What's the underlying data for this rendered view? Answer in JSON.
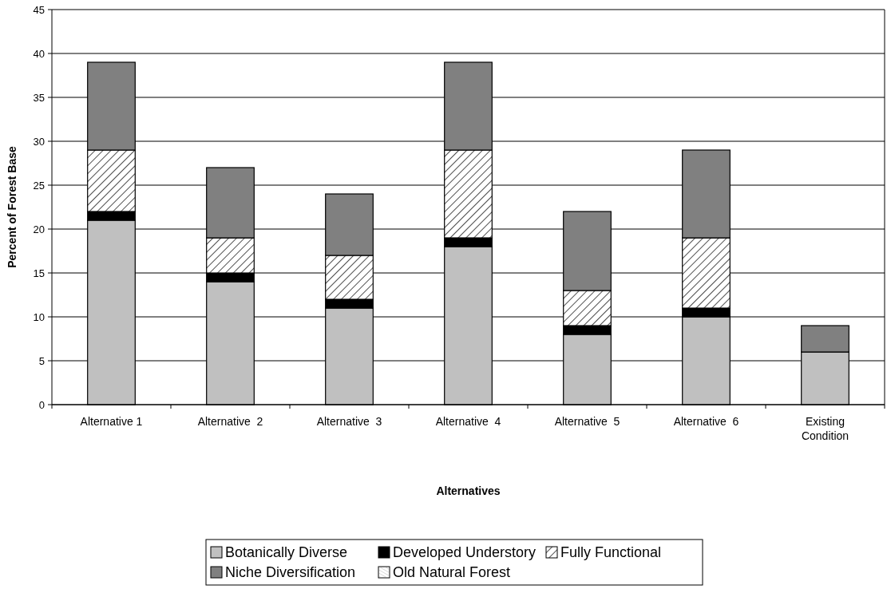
{
  "chart_data": {
    "type": "bar",
    "stacked": true,
    "xlabel": "Alternatives",
    "ylabel": "Percent of Forest Base",
    "categories": [
      "Alternative 1",
      "Alternative  2",
      "Alternative  3",
      "Alternative  4",
      "Alternative  5",
      "Alternative  6",
      "Existing Condition"
    ],
    "series": [
      {
        "name": "Botanically Diverse",
        "color": "#c0c0c0",
        "values": [
          21,
          14,
          11,
          18,
          8,
          10,
          6
        ]
      },
      {
        "name": "Developed Understory",
        "color": "#000000",
        "values": [
          1,
          1,
          1,
          1,
          1,
          1,
          0
        ]
      },
      {
        "name": "Fully Functional",
        "color": "#ffffff",
        "values": [
          7,
          4,
          5,
          10,
          4,
          8,
          0
        ]
      },
      {
        "name": "Niche Diversification",
        "color": "#808080",
        "values": [
          10,
          8,
          7,
          10,
          9,
          10,
          3
        ]
      },
      {
        "name": "Old Natural Forest",
        "color": "#ffffff",
        "values": [
          0,
          0,
          0,
          0,
          0,
          0,
          0
        ]
      }
    ],
    "ylim": [
      0,
      45
    ],
    "yticks": [
      0,
      5,
      10,
      15,
      20,
      25,
      30,
      35,
      40,
      45
    ],
    "grid": "y",
    "legend": "bottom"
  }
}
